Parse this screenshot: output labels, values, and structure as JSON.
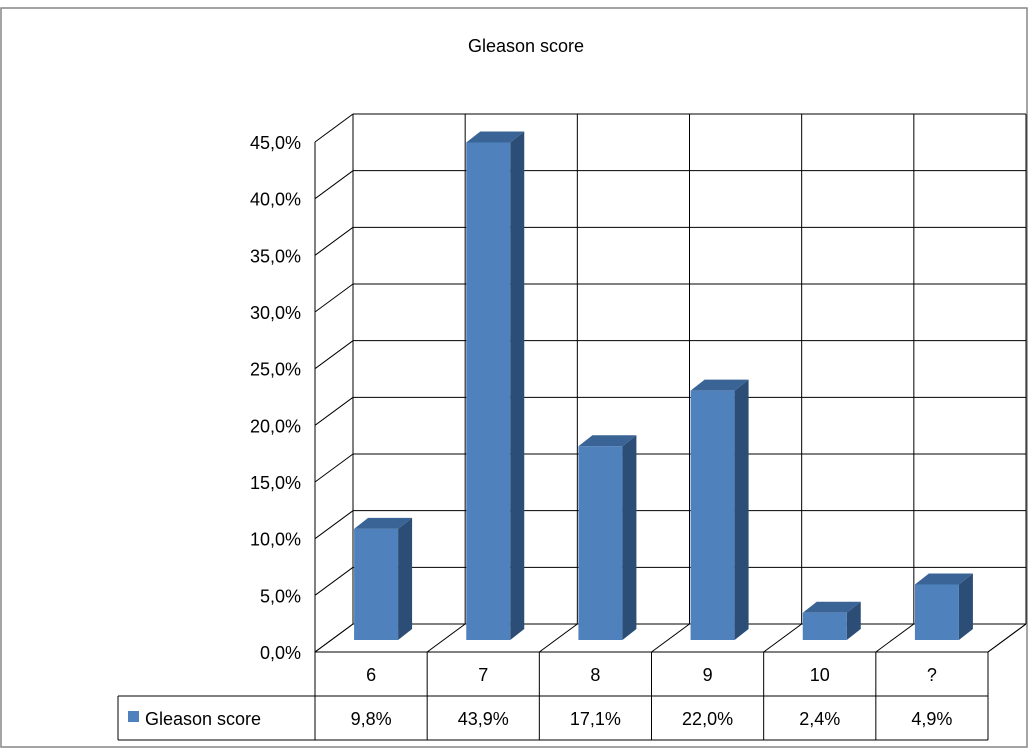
{
  "chart_data": {
    "type": "bar",
    "title": "Gleason score",
    "categories": [
      "6",
      "7",
      "8",
      "9",
      "10",
      "?"
    ],
    "series": [
      {
        "name": "Gleason score",
        "values": [
          9.8,
          43.9,
          17.1,
          22.0,
          2.4,
          4.9
        ],
        "value_labels": [
          "9,8%",
          "43,9%",
          "17,1%",
          "22,0%",
          "2,4%",
          "4,9%"
        ]
      }
    ],
    "y_ticks": [
      "0,0%",
      "5,0%",
      "10,0%",
      "15,0%",
      "20,0%",
      "25,0%",
      "30,0%",
      "35,0%",
      "40,0%",
      "45,0%"
    ],
    "ylim": [
      0,
      45
    ],
    "xlabel": "",
    "ylabel": "",
    "grid": true,
    "legend": "data table",
    "colors": {
      "bar_front": "#4f81bd",
      "bar_side": "#2c4d75",
      "bar_top": "#3a6496",
      "grid": "#000000",
      "background": "#ffffff"
    }
  }
}
